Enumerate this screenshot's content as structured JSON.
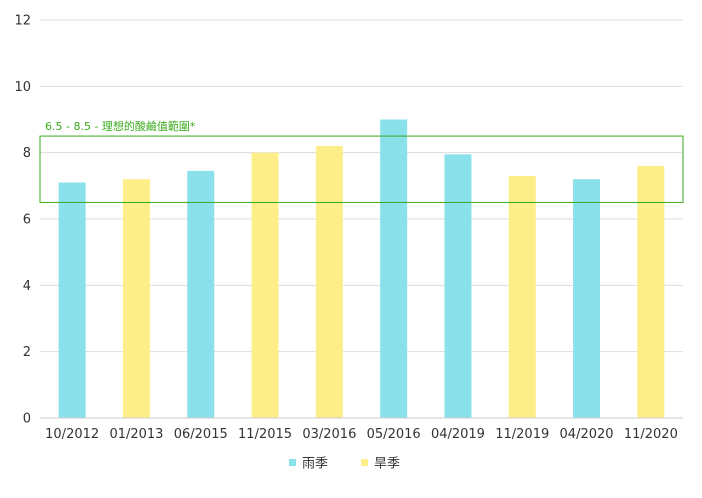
{
  "chart_data": {
    "type": "bar",
    "categories": [
      "10/2012",
      "01/2013",
      "06/2015",
      "11/2015",
      "03/2016",
      "05/2016",
      "04/2019",
      "11/2019",
      "04/2020",
      "11/2020"
    ],
    "values": [
      7.1,
      7.2,
      7.45,
      8.0,
      8.2,
      9.0,
      7.95,
      7.3,
      7.2,
      7.6
    ],
    "season": [
      "雨季",
      "旱季",
      "雨季",
      "旱季",
      "旱季",
      "雨季",
      "雨季",
      "旱季",
      "雨季",
      "旱季"
    ],
    "series": [
      {
        "name": "雨季",
        "color": "#8ae1eb"
      },
      {
        "name": "旱季",
        "color": "#fdee89"
      }
    ],
    "yticks": [
      0,
      2,
      4,
      6,
      8,
      10,
      12
    ],
    "ylim": [
      0,
      12
    ],
    "grid": true,
    "legend_position": "bottom-center",
    "reference_band": {
      "label": "6.5 - 8.5 - 理想的酸鹼值範圍*",
      "low": 6.5,
      "high": 8.5,
      "color": "#3aaa1d"
    }
  }
}
